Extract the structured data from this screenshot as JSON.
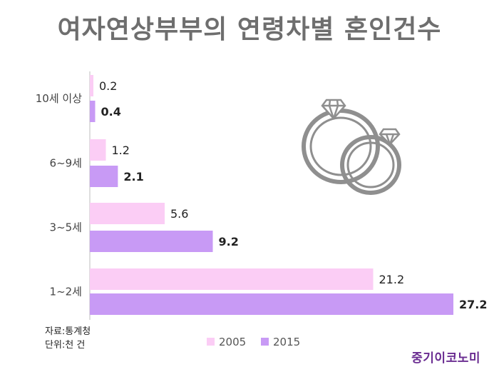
{
  "title": "여자연상부부의 연령차별 혼인건수",
  "chart_data": {
    "type": "bar",
    "orientation": "horizontal",
    "categories": [
      "10세 이상",
      "6~9세",
      "3~5세",
      "1~2세"
    ],
    "series": [
      {
        "name": "2005",
        "values": [
          0.2,
          1.2,
          5.6,
          21.2
        ],
        "color": "#fbcdf5"
      },
      {
        "name": "2015",
        "values": [
          0.4,
          2.1,
          9.2,
          27.2
        ],
        "color": "#c89af5"
      }
    ],
    "legend_position": "bottom-center",
    "grid": false
  },
  "source": {
    "line1": "자료:통계청",
    "line2": "단위:천 건"
  },
  "logo": "중기이코노미",
  "icons": [
    "wedding-rings-icon"
  ]
}
